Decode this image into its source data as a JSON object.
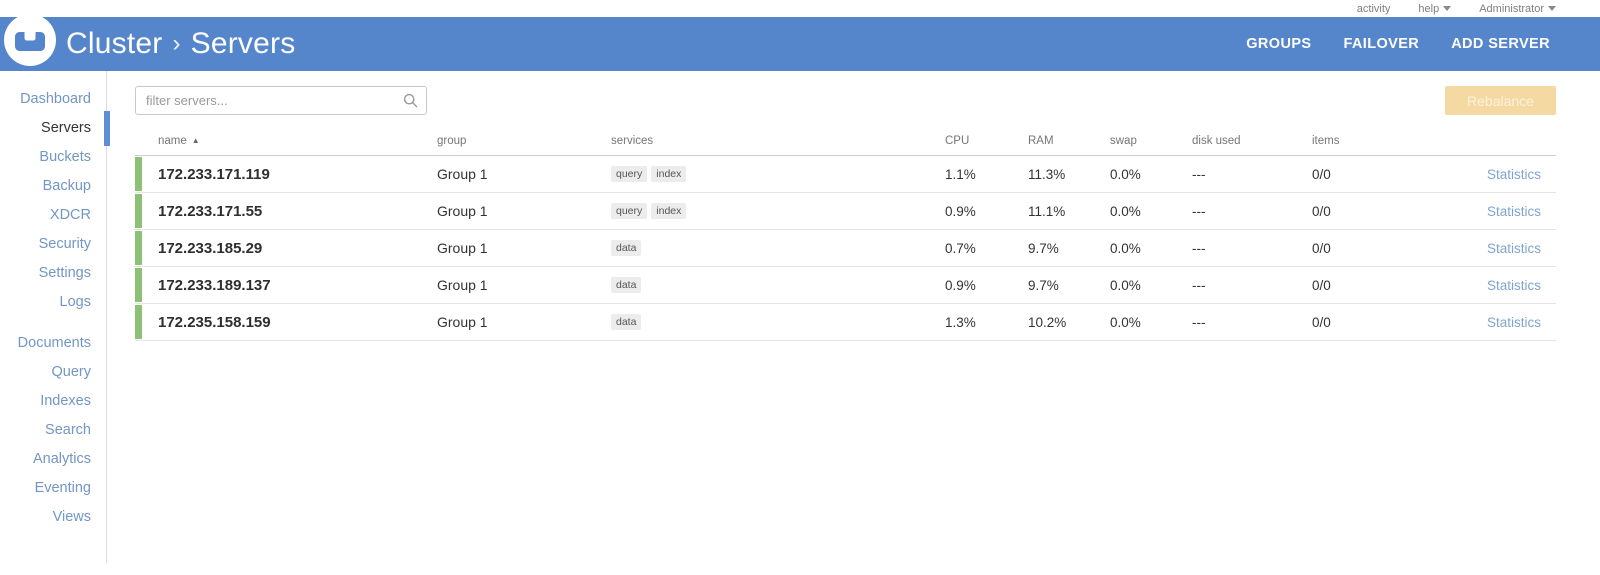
{
  "topbar": {
    "activity_label": "activity",
    "help_label": "help",
    "user_label": "Administrator"
  },
  "header": {
    "breadcrumb_root": "Cluster",
    "breadcrumb_separator": "›",
    "breadcrumb_current": "Servers",
    "actions": [
      {
        "label": "GROUPS"
      },
      {
        "label": "FAILOVER"
      },
      {
        "label": "ADD SERVER"
      }
    ]
  },
  "sidebar": {
    "active_item": "Servers",
    "groups": [
      {
        "items": [
          "Dashboard",
          "Servers",
          "Buckets",
          "Backup",
          "XDCR",
          "Security",
          "Settings",
          "Logs"
        ]
      },
      {
        "items": [
          "Documents",
          "Query",
          "Indexes",
          "Search",
          "Analytics",
          "Eventing",
          "Views"
        ]
      }
    ]
  },
  "toolbar": {
    "filter_placeholder": "filter servers...",
    "rebalance_label": "Rebalance"
  },
  "table": {
    "columns": [
      "name",
      "group",
      "services",
      "CPU",
      "RAM",
      "swap",
      "disk used",
      "items"
    ],
    "sort_column": "name",
    "sort_direction": "ascending",
    "statistics_label": "Statistics",
    "rows": [
      {
        "name": "172.233.171.119",
        "group": "Group 1",
        "services": [
          "query",
          "index"
        ],
        "cpu": "1.1%",
        "ram": "11.3%",
        "swap": "0.0%",
        "disk_used": "---",
        "items": "0/0"
      },
      {
        "name": "172.233.171.55",
        "group": "Group 1",
        "services": [
          "query",
          "index"
        ],
        "cpu": "0.9%",
        "ram": "11.1%",
        "swap": "0.0%",
        "disk_used": "---",
        "items": "0/0"
      },
      {
        "name": "172.233.185.29",
        "group": "Group 1",
        "services": [
          "data"
        ],
        "cpu": "0.7%",
        "ram": "9.7%",
        "swap": "0.0%",
        "disk_used": "---",
        "items": "0/0"
      },
      {
        "name": "172.233.189.137",
        "group": "Group 1",
        "services": [
          "data"
        ],
        "cpu": "0.9%",
        "ram": "9.7%",
        "swap": "0.0%",
        "disk_used": "---",
        "items": "0/0"
      },
      {
        "name": "172.235.158.159",
        "group": "Group 1",
        "services": [
          "data"
        ],
        "cpu": "1.3%",
        "ram": "10.2%",
        "swap": "0.0%",
        "disk_used": "---",
        "items": "0/0"
      }
    ]
  },
  "colors": {
    "header_bg": "#5586cb",
    "link_blue": "#7296c5",
    "healthy_green": "#8cc176",
    "rebalance_disabled_bg": "#f4d9a2"
  }
}
